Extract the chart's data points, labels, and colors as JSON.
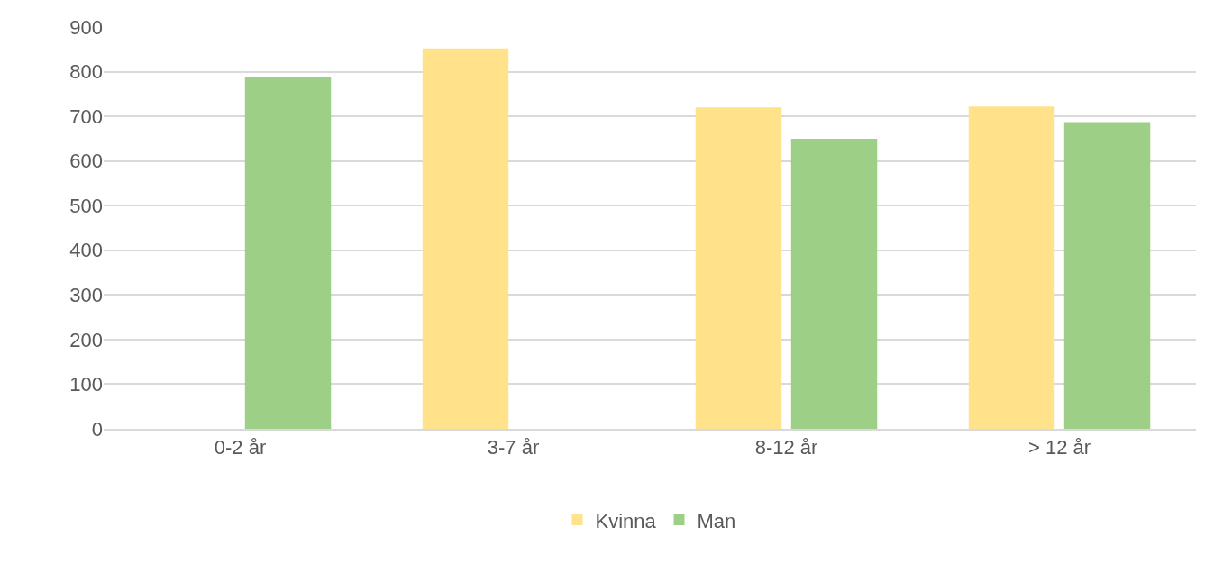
{
  "chart_data": {
    "type": "bar",
    "categories": [
      "0-2 år",
      "3-7 år",
      "8-12 år",
      "> 12 år"
    ],
    "series": [
      {
        "name": "Kvinna",
        "color": "#ffe28a",
        "values": [
          null,
          852,
          720,
          722
        ]
      },
      {
        "name": "Man",
        "color": "#9dcf86",
        "values": [
          787,
          null,
          650,
          687
        ]
      }
    ],
    "ylim": [
      0,
      900
    ],
    "yticks": [
      0,
      100,
      200,
      300,
      400,
      500,
      600,
      700,
      800,
      900
    ],
    "grid": "y",
    "legend": "bottom"
  }
}
